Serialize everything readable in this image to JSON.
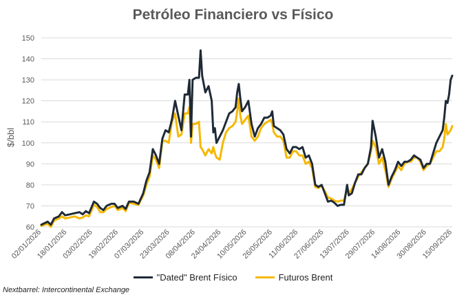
{
  "title": "Petróleo Financiero vs Físico",
  "source": "Nextbarrel: Intercontinental Exchange",
  "colors": {
    "dated": "#1f2a36",
    "futures": "#f5b800",
    "grid": "#d9d9d9",
    "axis_text": "#595959"
  },
  "chart_data": {
    "type": "line",
    "title": "Petróleo Financiero vs Físico",
    "xlabel": "",
    "ylabel": "$/bbl",
    "ylim": [
      60,
      150
    ],
    "yticks": [
      60,
      70,
      80,
      90,
      100,
      110,
      120,
      130,
      140,
      150
    ],
    "grid": true,
    "legend": "bottom",
    "xlim": [
      "2026-01-02",
      "2026-09-17"
    ],
    "xtick_labels": [
      "02/01/2026",
      "18/01/2026",
      "03/02/2026",
      "19/02/2026",
      "07/03/2026",
      "23/03/2026",
      "08/04/2026",
      "24/04/2026",
      "10/05/2026",
      "26/05/2026",
      "11/06/2026",
      "27/06/2026",
      "13/07/2026",
      "29/07/2026",
      "14/08/2026",
      "30/08/2026",
      "15/09/2026"
    ],
    "series": [
      {
        "name": "\"Dated\" Brent Físico",
        "color": "#1f2a36",
        "points": [
          [
            "2026-01-02",
            61
          ],
          [
            "2026-01-06",
            62.5
          ],
          [
            "2026-01-08",
            61
          ],
          [
            "2026-01-10",
            64
          ],
          [
            "2026-01-13",
            65
          ],
          [
            "2026-01-15",
            67
          ],
          [
            "2026-01-17",
            65.5
          ],
          [
            "2026-01-20",
            66
          ],
          [
            "2026-01-23",
            66.5
          ],
          [
            "2026-01-26",
            67
          ],
          [
            "2026-01-28",
            66
          ],
          [
            "2026-01-30",
            67.5
          ],
          [
            "2026-02-01",
            66.5
          ],
          [
            "2026-02-04",
            72
          ],
          [
            "2026-02-06",
            71
          ],
          [
            "2026-02-08",
            69
          ],
          [
            "2026-02-10",
            68
          ],
          [
            "2026-02-12",
            70
          ],
          [
            "2026-02-15",
            71
          ],
          [
            "2026-02-17",
            71
          ],
          [
            "2026-02-19",
            69
          ],
          [
            "2026-02-22",
            70
          ],
          [
            "2026-02-24",
            68.5
          ],
          [
            "2026-02-26",
            72
          ],
          [
            "2026-03-01",
            72
          ],
          [
            "2026-03-04",
            71
          ],
          [
            "2026-03-07",
            76
          ],
          [
            "2026-03-09",
            82
          ],
          [
            "2026-03-11",
            86
          ],
          [
            "2026-03-13",
            97
          ],
          [
            "2026-03-15",
            94
          ],
          [
            "2026-03-17",
            90
          ],
          [
            "2026-03-19",
            102
          ],
          [
            "2026-03-21",
            106
          ],
          [
            "2026-03-23",
            105
          ],
          [
            "2026-03-25",
            111
          ],
          [
            "2026-03-27",
            120
          ],
          [
            "2026-03-29",
            113
          ],
          [
            "2026-03-31",
            106
          ],
          [
            "2026-04-02",
            123
          ],
          [
            "2026-04-04",
            123
          ],
          [
            "2026-04-05",
            130
          ],
          [
            "2026-04-06",
            103
          ],
          [
            "2026-04-07",
            130
          ],
          [
            "2026-04-09",
            131
          ],
          [
            "2026-04-11",
            131
          ],
          [
            "2026-04-12",
            144
          ],
          [
            "2026-04-13",
            132
          ],
          [
            "2026-04-15",
            124
          ],
          [
            "2026-04-17",
            127
          ],
          [
            "2026-04-19",
            120
          ],
          [
            "2026-04-20",
            105
          ],
          [
            "2026-04-21",
            107
          ],
          [
            "2026-04-22",
            100
          ],
          [
            "2026-04-24",
            103
          ],
          [
            "2026-04-26",
            106
          ],
          [
            "2026-04-28",
            110
          ],
          [
            "2026-04-30",
            114
          ],
          [
            "2026-05-02",
            115
          ],
          [
            "2026-05-04",
            117
          ],
          [
            "2026-05-05",
            124
          ],
          [
            "2026-05-06",
            128
          ],
          [
            "2026-05-07",
            121
          ],
          [
            "2026-05-08",
            115
          ],
          [
            "2026-05-10",
            117
          ],
          [
            "2026-05-12",
            120
          ],
          [
            "2026-05-14",
            109
          ],
          [
            "2026-05-16",
            103
          ],
          [
            "2026-05-18",
            107
          ],
          [
            "2026-05-20",
            109
          ],
          [
            "2026-05-22",
            112
          ],
          [
            "2026-05-24",
            112
          ],
          [
            "2026-05-26",
            113
          ],
          [
            "2026-05-27",
            115
          ],
          [
            "2026-05-28",
            108
          ],
          [
            "2026-05-30",
            107
          ],
          [
            "2026-06-01",
            106
          ],
          [
            "2026-06-03",
            104
          ],
          [
            "2026-06-05",
            97
          ],
          [
            "2026-06-07",
            95
          ],
          [
            "2026-06-09",
            98
          ],
          [
            "2026-06-11",
            98
          ],
          [
            "2026-06-13",
            97
          ],
          [
            "2026-06-15",
            98
          ],
          [
            "2026-06-17",
            93
          ],
          [
            "2026-06-19",
            94
          ],
          [
            "2026-06-21",
            90
          ],
          [
            "2026-06-23",
            80
          ],
          [
            "2026-06-25",
            79
          ],
          [
            "2026-06-27",
            80
          ],
          [
            "2026-06-29",
            76
          ],
          [
            "2026-07-01",
            72
          ],
          [
            "2026-07-03",
            72.5
          ],
          [
            "2026-07-05",
            71.5
          ],
          [
            "2026-07-07",
            70
          ],
          [
            "2026-07-09",
            70.5
          ],
          [
            "2026-07-11",
            70.5
          ],
          [
            "2026-07-13",
            80
          ],
          [
            "2026-07-14",
            75
          ],
          [
            "2026-07-16",
            76
          ],
          [
            "2026-07-18",
            81
          ],
          [
            "2026-07-20",
            85
          ],
          [
            "2026-07-22",
            85
          ],
          [
            "2026-07-24",
            88
          ],
          [
            "2026-07-26",
            90
          ],
          [
            "2026-07-28",
            98
          ],
          [
            "2026-07-29",
            110.5
          ],
          [
            "2026-07-31",
            103
          ],
          [
            "2026-08-02",
            93
          ],
          [
            "2026-08-04",
            97
          ],
          [
            "2026-08-06",
            91
          ],
          [
            "2026-08-08",
            80
          ],
          [
            "2026-08-10",
            84
          ],
          [
            "2026-08-12",
            87
          ],
          [
            "2026-08-14",
            91
          ],
          [
            "2026-08-16",
            89
          ],
          [
            "2026-08-18",
            91
          ],
          [
            "2026-08-20",
            91
          ],
          [
            "2026-08-22",
            92
          ],
          [
            "2026-08-24",
            94
          ],
          [
            "2026-08-26",
            93
          ],
          [
            "2026-08-28",
            92
          ],
          [
            "2026-08-30",
            88
          ],
          [
            "2026-09-01",
            90
          ],
          [
            "2026-09-03",
            90
          ],
          [
            "2026-09-05",
            95
          ],
          [
            "2026-09-07",
            100
          ],
          [
            "2026-09-09",
            103
          ],
          [
            "2026-09-11",
            106
          ],
          [
            "2026-09-12",
            112
          ],
          [
            "2026-09-13",
            120
          ],
          [
            "2026-09-14",
            119
          ],
          [
            "2026-09-15",
            123
          ],
          [
            "2026-09-16",
            130
          ],
          [
            "2026-09-17",
            132
          ]
        ]
      },
      {
        "name": "Futuros Brent",
        "color": "#f5b800",
        "points": [
          [
            "2026-01-02",
            60.5
          ],
          [
            "2026-01-06",
            61.5
          ],
          [
            "2026-01-08",
            60
          ],
          [
            "2026-01-10",
            63
          ],
          [
            "2026-01-13",
            64
          ],
          [
            "2026-01-15",
            65
          ],
          [
            "2026-01-17",
            64
          ],
          [
            "2026-01-20",
            64.5
          ],
          [
            "2026-01-23",
            65
          ],
          [
            "2026-01-26",
            64
          ],
          [
            "2026-01-28",
            64.5
          ],
          [
            "2026-01-30",
            65.5
          ],
          [
            "2026-02-01",
            65
          ],
          [
            "2026-02-04",
            70.5
          ],
          [
            "2026-02-06",
            69.5
          ],
          [
            "2026-02-08",
            67
          ],
          [
            "2026-02-10",
            67
          ],
          [
            "2026-02-12",
            68.5
          ],
          [
            "2026-02-15",
            69.5
          ],
          [
            "2026-02-17",
            70
          ],
          [
            "2026-02-19",
            68
          ],
          [
            "2026-02-22",
            69
          ],
          [
            "2026-02-24",
            67.5
          ],
          [
            "2026-02-26",
            71.5
          ],
          [
            "2026-03-01",
            71
          ],
          [
            "2026-03-04",
            70.5
          ],
          [
            "2026-03-07",
            75
          ],
          [
            "2026-03-09",
            80
          ],
          [
            "2026-03-11",
            84
          ],
          [
            "2026-03-13",
            94
          ],
          [
            "2026-03-15",
            92
          ],
          [
            "2026-03-17",
            88
          ],
          [
            "2026-03-19",
            101
          ],
          [
            "2026-03-21",
            101
          ],
          [
            "2026-03-23",
            100
          ],
          [
            "2026-03-25",
            110
          ],
          [
            "2026-03-27",
            114
          ],
          [
            "2026-03-29",
            103
          ],
          [
            "2026-03-31",
            104
          ],
          [
            "2026-04-02",
            114
          ],
          [
            "2026-04-04",
            114
          ],
          [
            "2026-04-05",
            117
          ],
          [
            "2026-04-06",
            100
          ],
          [
            "2026-04-07",
            109
          ],
          [
            "2026-04-09",
            109
          ],
          [
            "2026-04-11",
            110
          ],
          [
            "2026-04-12",
            98
          ],
          [
            "2026-04-13",
            97
          ],
          [
            "2026-04-15",
            94
          ],
          [
            "2026-04-17",
            97
          ],
          [
            "2026-04-19",
            95
          ],
          [
            "2026-04-20",
            98
          ],
          [
            "2026-04-21",
            95
          ],
          [
            "2026-04-22",
            93
          ],
          [
            "2026-04-24",
            92
          ],
          [
            "2026-04-26",
            100
          ],
          [
            "2026-04-28",
            105
          ],
          [
            "2026-04-30",
            107
          ],
          [
            "2026-05-02",
            108
          ],
          [
            "2026-05-04",
            110
          ],
          [
            "2026-05-05",
            115
          ],
          [
            "2026-05-06",
            121
          ],
          [
            "2026-05-07",
            113
          ],
          [
            "2026-05-08",
            109
          ],
          [
            "2026-05-10",
            111
          ],
          [
            "2026-05-12",
            113
          ],
          [
            "2026-05-14",
            103
          ],
          [
            "2026-05-16",
            101
          ],
          [
            "2026-05-18",
            103
          ],
          [
            "2026-05-20",
            107
          ],
          [
            "2026-05-22",
            109
          ],
          [
            "2026-05-24",
            110
          ],
          [
            "2026-05-26",
            111
          ],
          [
            "2026-05-27",
            109
          ],
          [
            "2026-05-28",
            105
          ],
          [
            "2026-05-30",
            103
          ],
          [
            "2026-06-01",
            103
          ],
          [
            "2026-06-03",
            101
          ],
          [
            "2026-06-05",
            93
          ],
          [
            "2026-06-07",
            93
          ],
          [
            "2026-06-09",
            96
          ],
          [
            "2026-06-11",
            96
          ],
          [
            "2026-06-13",
            94
          ],
          [
            "2026-06-15",
            94
          ],
          [
            "2026-06-17",
            90
          ],
          [
            "2026-06-19",
            91
          ],
          [
            "2026-06-21",
            88
          ],
          [
            "2026-06-23",
            79
          ],
          [
            "2026-06-25",
            78.5
          ],
          [
            "2026-06-27",
            79.5
          ],
          [
            "2026-06-29",
            77
          ],
          [
            "2026-07-01",
            74
          ],
          [
            "2026-07-03",
            73.5
          ],
          [
            "2026-07-05",
            72.5
          ],
          [
            "2026-07-07",
            72
          ],
          [
            "2026-07-09",
            72.5
          ],
          [
            "2026-07-11",
            72.5
          ],
          [
            "2026-07-13",
            78
          ],
          [
            "2026-07-14",
            76
          ],
          [
            "2026-07-16",
            78
          ],
          [
            "2026-07-18",
            81
          ],
          [
            "2026-07-20",
            84
          ],
          [
            "2026-07-22",
            86
          ],
          [
            "2026-07-24",
            88
          ],
          [
            "2026-07-26",
            90
          ],
          [
            "2026-07-28",
            96
          ],
          [
            "2026-07-29",
            101
          ],
          [
            "2026-07-31",
            98
          ],
          [
            "2026-08-02",
            90
          ],
          [
            "2026-08-04",
            93
          ],
          [
            "2026-08-06",
            87
          ],
          [
            "2026-08-08",
            79
          ],
          [
            "2026-08-10",
            83
          ],
          [
            "2026-08-12",
            86
          ],
          [
            "2026-08-14",
            89
          ],
          [
            "2026-08-16",
            87
          ],
          [
            "2026-08-18",
            90
          ],
          [
            "2026-08-20",
            91
          ],
          [
            "2026-08-22",
            91
          ],
          [
            "2026-08-24",
            93
          ],
          [
            "2026-08-26",
            93
          ],
          [
            "2026-08-28",
            91
          ],
          [
            "2026-08-30",
            87
          ],
          [
            "2026-09-01",
            89
          ],
          [
            "2026-09-03",
            90
          ],
          [
            "2026-09-05",
            93
          ],
          [
            "2026-09-07",
            96
          ],
          [
            "2026-09-09",
            96
          ],
          [
            "2026-09-11",
            98
          ],
          [
            "2026-09-12",
            102
          ],
          [
            "2026-09-13",
            109
          ],
          [
            "2026-09-14",
            104
          ],
          [
            "2026-09-15",
            105
          ],
          [
            "2026-09-16",
            106
          ],
          [
            "2026-09-17",
            108
          ]
        ]
      }
    ]
  }
}
